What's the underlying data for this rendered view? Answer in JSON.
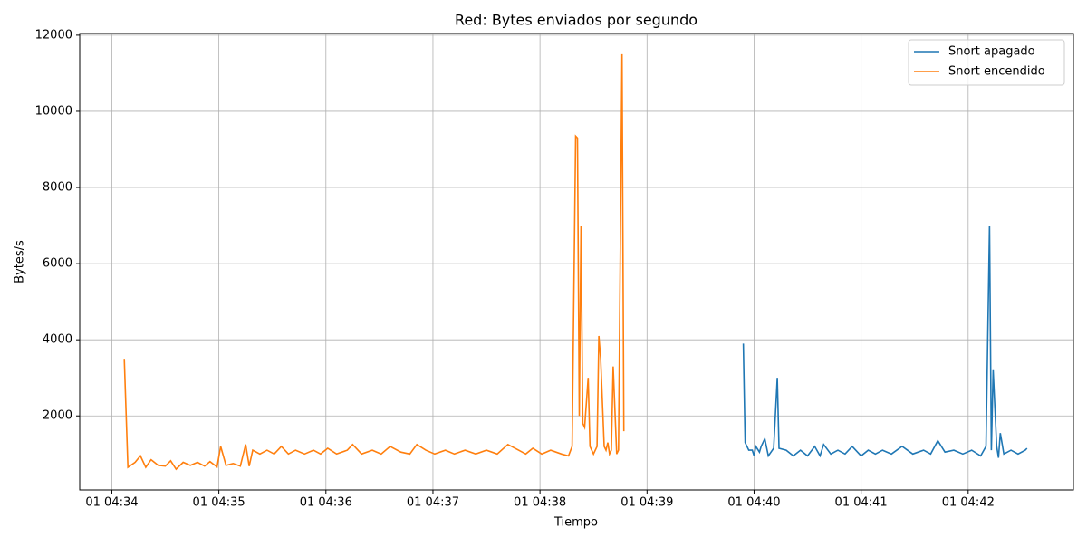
{
  "chart_data": {
    "type": "line",
    "title": "Red: Bytes enviados por segundo",
    "x_label": "Tiempo",
    "y_label": "Bytes/s",
    "xlim": [
      "01 04:33:42",
      "01 04:42:59"
    ],
    "xticks": [
      {
        "value": "01 04:34:00",
        "label": "01 04:34"
      },
      {
        "value": "01 04:35:00",
        "label": "01 04:35"
      },
      {
        "value": "01 04:36:00",
        "label": "01 04:36"
      },
      {
        "value": "01 04:37:00",
        "label": "01 04:37"
      },
      {
        "value": "01 04:38:00",
        "label": "01 04:38"
      },
      {
        "value": "01 04:39:00",
        "label": "01 04:39"
      },
      {
        "value": "01 04:40:00",
        "label": "01 04:40"
      },
      {
        "value": "01 04:41:00",
        "label": "01 04:41"
      },
      {
        "value": "01 04:42:00",
        "label": "01 04:42"
      }
    ],
    "ylim": [
      55,
      12045
    ],
    "yticks": [
      2000,
      4000,
      6000,
      8000,
      10000,
      12000
    ],
    "grid": true,
    "legend": "upper right",
    "series": [
      {
        "name": "Snort apagado",
        "color": "#1f77b4",
        "x": [
          "01 04:39:54",
          "01 04:39:55",
          "01 04:39:57",
          "01 04:39:59",
          "01 04:40:00",
          "01 04:40:01",
          "01 04:40:03",
          "01 04:40:04",
          "01 04:40:06",
          "01 04:40:08",
          "01 04:40:11",
          "01 04:40:13",
          "01 04:40:14",
          "01 04:40:18",
          "01 04:40:22",
          "01 04:40:26",
          "01 04:40:30",
          "01 04:40:34",
          "01 04:40:37",
          "01 04:40:39",
          "01 04:40:43",
          "01 04:40:47",
          "01 04:40:51",
          "01 04:40:55",
          "01 04:41:00",
          "01 04:41:04",
          "01 04:41:08",
          "01 04:41:12",
          "01 04:41:17",
          "01 04:41:23",
          "01 04:41:29",
          "01 04:41:35",
          "01 04:41:39",
          "01 04:41:43",
          "01 04:41:47",
          "01 04:41:52",
          "01 04:41:57",
          "01 04:42:02",
          "01 04:42:07",
          "01 04:42:10",
          "01 04:42:12",
          "01 04:42:13",
          "01 04:42:14",
          "01 04:42:16",
          "01 04:42:17",
          "01 04:42:18",
          "01 04:42:20",
          "01 04:42:24",
          "01 04:42:28",
          "01 04:42:32",
          "01 04:42:33"
        ],
        "values": [
          3900,
          1300,
          1100,
          1100,
          950,
          1200,
          1050,
          1200,
          1400,
          950,
          1150,
          3000,
          1150,
          1100,
          950,
          1100,
          950,
          1200,
          950,
          1250,
          1000,
          1100,
          1000,
          1200,
          950,
          1100,
          1000,
          1100,
          1000,
          1200,
          1000,
          1100,
          1000,
          1350,
          1050,
          1100,
          1000,
          1100,
          950,
          1200,
          7000,
          1100,
          3200,
          1200,
          900,
          1550,
          1000,
          1100,
          1000,
          1100,
          1150
        ]
      },
      {
        "name": "Snort encendido",
        "color": "#ff7f0e",
        "x": [
          "01 04:34:07",
          "01 04:34:09",
          "01 04:34:13",
          "01 04:34:16",
          "01 04:34:19",
          "01 04:34:22",
          "01 04:34:26",
          "01 04:34:30",
          "01 04:34:33",
          "01 04:34:36",
          "01 04:34:40",
          "01 04:34:44",
          "01 04:34:48",
          "01 04:34:52",
          "01 04:34:55",
          "01 04:34:59",
          "01 04:35:01",
          "01 04:35:04",
          "01 04:35:08",
          "01 04:35:12",
          "01 04:35:15",
          "01 04:35:17",
          "01 04:35:19",
          "01 04:35:23",
          "01 04:35:27",
          "01 04:35:31",
          "01 04:35:35",
          "01 04:35:39",
          "01 04:35:43",
          "01 04:35:48",
          "01 04:35:53",
          "01 04:35:57",
          "01 04:36:01",
          "01 04:36:06",
          "01 04:36:12",
          "01 04:36:15",
          "01 04:36:20",
          "01 04:36:26",
          "01 04:36:31",
          "01 04:36:36",
          "01 04:36:42",
          "01 04:36:47",
          "01 04:36:51",
          "01 04:36:56",
          "01 04:37:01",
          "01 04:37:07",
          "01 04:37:12",
          "01 04:37:18",
          "01 04:37:24",
          "01 04:37:30",
          "01 04:37:36",
          "01 04:37:42",
          "01 04:37:48",
          "01 04:37:52",
          "01 04:37:56",
          "01 04:38:01",
          "01 04:38:06",
          "01 04:38:12",
          "01 04:38:16",
          "01 04:38:18",
          "01 04:38:20",
          "01 04:38:21",
          "01 04:38:22",
          "01 04:38:23",
          "01 04:38:24",
          "01 04:38:25",
          "01 04:38:27",
          "01 04:38:28",
          "01 04:38:30",
          "01 04:38:32",
          "01 04:38:33",
          "01 04:38:34",
          "01 04:38:36",
          "01 04:38:37",
          "01 04:38:38",
          "01 04:38:39",
          "01 04:38:40",
          "01 04:38:41",
          "01 04:38:43",
          "01 04:38:44",
          "01 04:38:46",
          "01 04:38:47"
        ],
        "values": [
          3500,
          650,
          780,
          950,
          650,
          850,
          700,
          680,
          820,
          600,
          780,
          700,
          780,
          680,
          800,
          660,
          1200,
          700,
          750,
          680,
          1250,
          680,
          1100,
          1000,
          1100,
          1000,
          1200,
          1000,
          1100,
          1000,
          1100,
          1000,
          1150,
          1000,
          1100,
          1250,
          1000,
          1100,
          1000,
          1200,
          1050,
          1000,
          1250,
          1100,
          1000,
          1100,
          1000,
          1100,
          1000,
          1100,
          1000,
          1250,
          1100,
          1000,
          1150,
          1000,
          1100,
          1000,
          950,
          1200,
          9350,
          9300,
          2000,
          7000,
          1800,
          1700,
          3000,
          1200,
          1000,
          1200,
          4100,
          3500,
          1200,
          1100,
          1300,
          1000,
          1100,
          3300,
          1000,
          1100,
          11500,
          1600
        ]
      }
    ]
  }
}
